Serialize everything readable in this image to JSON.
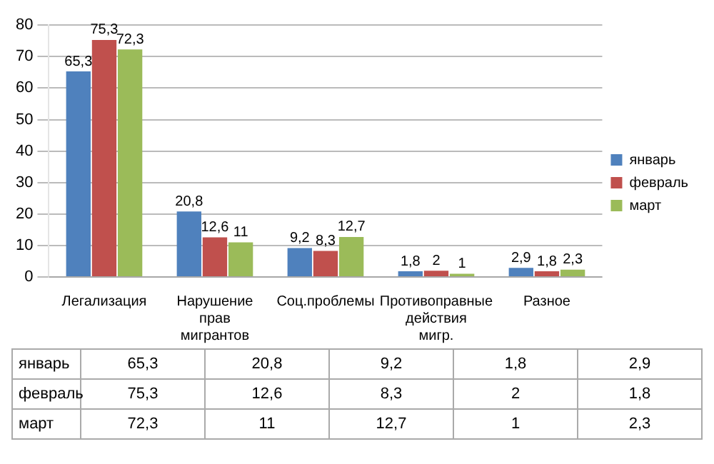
{
  "chart_data": {
    "type": "bar",
    "categories": [
      "Легализация",
      "Нарушение прав мигрантов",
      "Соц.проблемы",
      "Противоправные действия мигр.",
      "Разное"
    ],
    "series": [
      {
        "name": "январь",
        "color": "#4f81bd",
        "values": [
          65.3,
          20.8,
          9.2,
          1.8,
          2.9
        ],
        "value_labels": [
          "65,3",
          "20,8",
          "9,2",
          "1,8",
          "2,9"
        ]
      },
      {
        "name": "февраль",
        "color": "#c0504d",
        "values": [
          75.3,
          12.6,
          8.3,
          2,
          1.8
        ],
        "value_labels": [
          "75,3",
          "12,6",
          "8,3",
          "2",
          "1,8"
        ]
      },
      {
        "name": "март",
        "color": "#9bbb59",
        "values": [
          72.3,
          11,
          12.7,
          1,
          2.3
        ],
        "value_labels": [
          "72,3",
          "11",
          "12,7",
          "1",
          "2,3"
        ]
      }
    ],
    "ylim": [
      0,
      80
    ],
    "yticks": [
      0,
      10,
      20,
      30,
      40,
      50,
      60,
      70,
      80
    ],
    "grid": "y",
    "legend": "right"
  }
}
